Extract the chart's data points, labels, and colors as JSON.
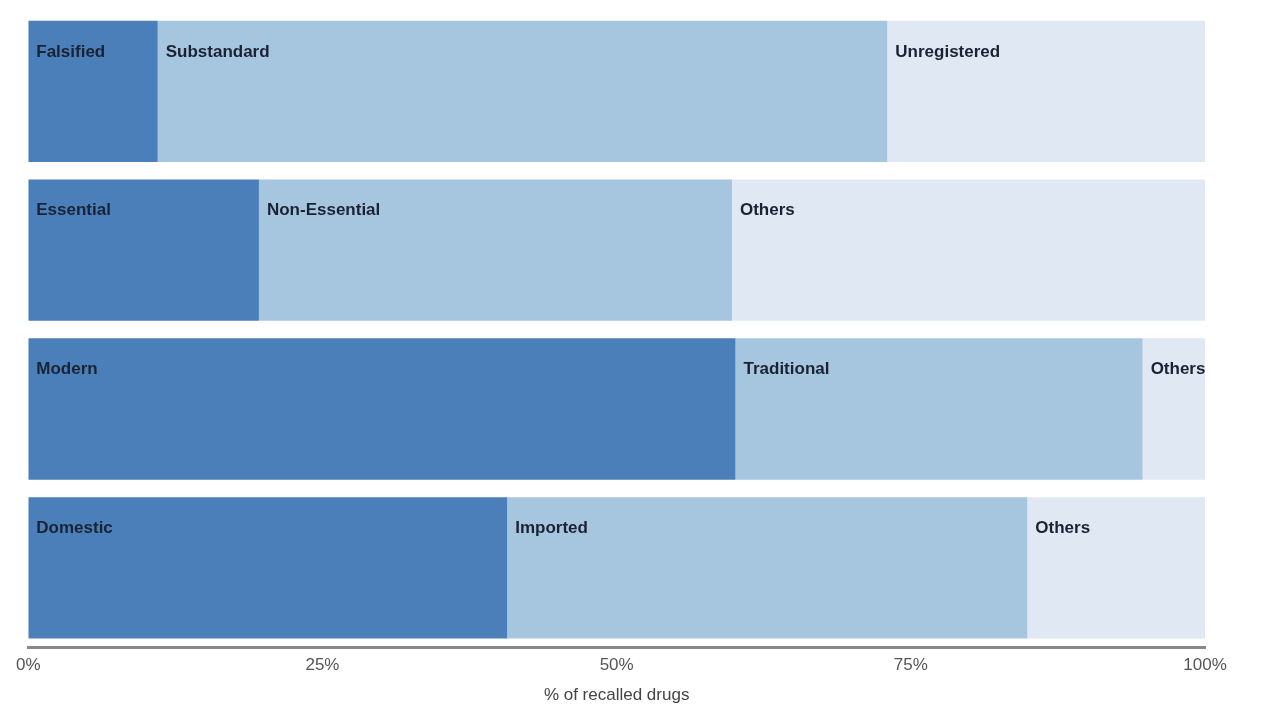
{
  "chart_data": {
    "type": "bar",
    "orientation": "horizontal",
    "stacked": true,
    "categories": [
      null,
      null,
      null,
      null
    ],
    "series": [
      {
        "color": "#4a7fb9",
        "values": [
          11,
          19.6,
          60.1,
          40.7
        ],
        "value_labels": [
          "Falsified",
          "Essential",
          "Modern",
          "Domestic"
        ]
      },
      {
        "color": "#a6c6e0",
        "values": [
          62,
          40.2,
          34.6,
          44.2
        ],
        "value_labels": [
          "Substandard",
          "Non-Essential",
          "Traditional",
          "Imported"
        ]
      },
      {
        "color": "#e0e8f4",
        "values": [
          27,
          40.2,
          5.3,
          15.1
        ],
        "value_labels": [
          "Unregistered",
          "Others",
          "Others",
          "Others"
        ]
      }
    ],
    "xlim": [
      0,
      100
    ],
    "xticks": [
      {
        "value": 0,
        "label": "0%"
      },
      {
        "value": 25,
        "label": "25%"
      },
      {
        "value": 50,
        "label": "50%"
      },
      {
        "value": 75,
        "label": "75%"
      },
      {
        "value": 100,
        "label": "100%"
      }
    ],
    "xlabel": "% of recalled drugs",
    "grid": false,
    "legend": false
  }
}
